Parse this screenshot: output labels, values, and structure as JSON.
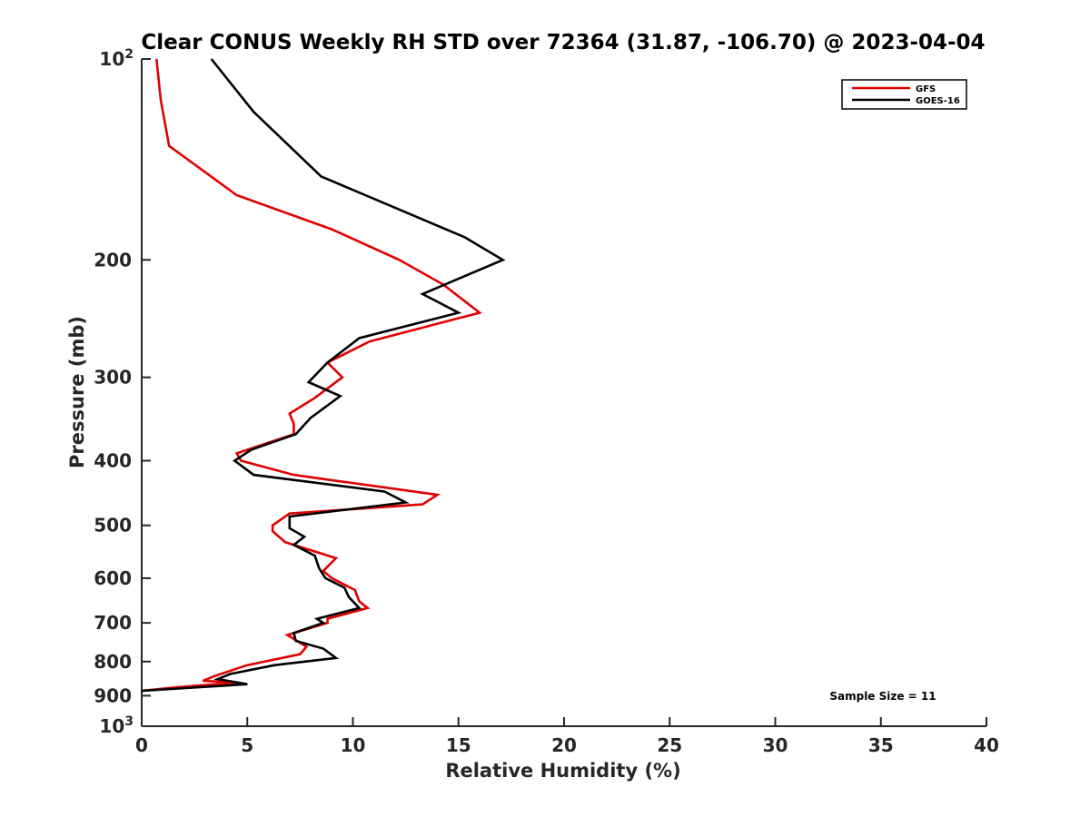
{
  "chart_data": {
    "type": "line",
    "title": "Clear CONUS Weekly RH STD over 72364 (31.87, -106.70) @ 2023-04-04",
    "xlabel": "Relative Humidity (%)",
    "ylabel": "Pressure (mb)",
    "xlim": [
      0,
      40
    ],
    "ylim": [
      100,
      1000
    ],
    "y_scale": "log",
    "y_reversed": true,
    "grid": false,
    "legend_position": "top-right",
    "x_ticks": [
      0,
      5,
      10,
      15,
      20,
      25,
      30,
      35,
      40
    ],
    "y_ticks": [
      {
        "value": 100,
        "base": "10",
        "exp": "2"
      },
      {
        "value": 200,
        "label": "200"
      },
      {
        "value": 300,
        "label": "300"
      },
      {
        "value": 400,
        "label": "400"
      },
      {
        "value": 500,
        "label": "500"
      },
      {
        "value": 600,
        "label": "600"
      },
      {
        "value": 700,
        "label": "700"
      },
      {
        "value": 800,
        "label": "800"
      },
      {
        "value": 900,
        "label": "900"
      },
      {
        "value": 1000,
        "base": "10",
        "exp": "3"
      }
    ],
    "annotation": "Sample Size = 11",
    "series": [
      {
        "name": "GFS",
        "color": "#e00000",
        "points": [
          [
            0.7,
            100
          ],
          [
            0.9,
            115
          ],
          [
            1.3,
            135
          ],
          [
            4.5,
            160
          ],
          [
            9.0,
            180
          ],
          [
            12.2,
            200
          ],
          [
            14.3,
            218
          ],
          [
            16.0,
            240
          ],
          [
            10.8,
            265
          ],
          [
            8.8,
            285
          ],
          [
            9.5,
            300
          ],
          [
            8.2,
            322
          ],
          [
            7.0,
            340
          ],
          [
            7.2,
            352
          ],
          [
            7.2,
            365
          ],
          [
            4.5,
            390
          ],
          [
            4.7,
            400
          ],
          [
            7.2,
            420
          ],
          [
            14.0,
            450
          ],
          [
            13.3,
            465
          ],
          [
            7.0,
            480
          ],
          [
            6.2,
            500
          ],
          [
            6.2,
            510
          ],
          [
            6.8,
            530
          ],
          [
            9.2,
            560
          ],
          [
            8.6,
            585
          ],
          [
            9.0,
            600
          ],
          [
            10.1,
            625
          ],
          [
            10.3,
            650
          ],
          [
            10.7,
            665
          ],
          [
            8.8,
            690
          ],
          [
            8.8,
            700
          ],
          [
            6.9,
            730
          ],
          [
            7.8,
            760
          ],
          [
            7.5,
            780
          ],
          [
            5.0,
            810
          ],
          [
            3.5,
            840
          ],
          [
            2.9,
            855
          ],
          [
            4.5,
            860
          ],
          [
            1.5,
            875
          ],
          [
            0.0,
            885
          ]
        ]
      },
      {
        "name": "GOES-16",
        "color": "#000000",
        "points": [
          [
            3.3,
            100
          ],
          [
            5.3,
            120
          ],
          [
            8.5,
            150
          ],
          [
            15.3,
            185
          ],
          [
            17.1,
            200
          ],
          [
            13.3,
            225
          ],
          [
            15.0,
            240
          ],
          [
            10.3,
            262
          ],
          [
            8.8,
            285
          ],
          [
            7.9,
            305
          ],
          [
            9.4,
            320
          ],
          [
            8.0,
            345
          ],
          [
            7.3,
            365
          ],
          [
            5.2,
            385
          ],
          [
            4.4,
            400
          ],
          [
            5.3,
            420
          ],
          [
            11.5,
            445
          ],
          [
            12.5,
            462
          ],
          [
            7.0,
            485
          ],
          [
            7.0,
            505
          ],
          [
            7.7,
            520
          ],
          [
            7.2,
            535
          ],
          [
            8.2,
            555
          ],
          [
            8.4,
            580
          ],
          [
            8.7,
            600
          ],
          [
            9.6,
            620
          ],
          [
            9.8,
            640
          ],
          [
            10.3,
            665
          ],
          [
            8.3,
            690
          ],
          [
            8.6,
            700
          ],
          [
            7.2,
            725
          ],
          [
            7.3,
            745
          ],
          [
            8.6,
            765
          ],
          [
            9.2,
            790
          ],
          [
            6.3,
            810
          ],
          [
            4.2,
            835
          ],
          [
            3.6,
            850
          ],
          [
            5.0,
            865
          ],
          [
            0.0,
            885
          ]
        ]
      }
    ]
  }
}
